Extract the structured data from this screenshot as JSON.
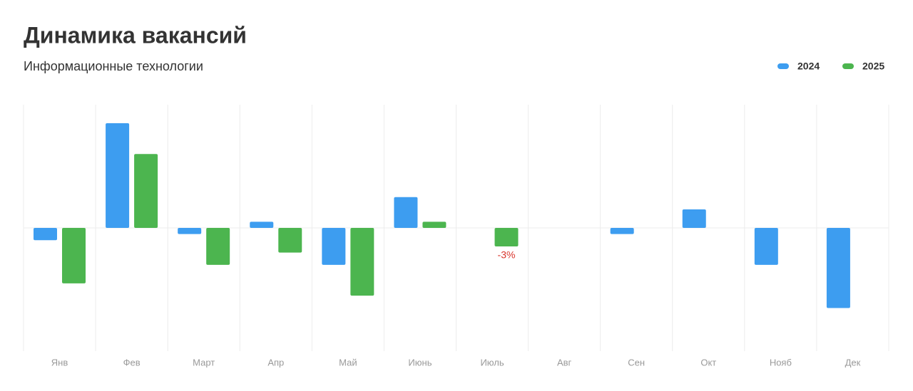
{
  "chart_data": {
    "type": "bar",
    "title": "Динамика вакансий",
    "subtitle": "Информационные технологии",
    "categories": [
      "Янв",
      "Фев",
      "Март",
      "Апр",
      "Май",
      "Июнь",
      "Июль",
      "Авг",
      "Сен",
      "Окт",
      "Нояб",
      "Дек"
    ],
    "series": [
      {
        "name": "2024",
        "color": "#3d9df0",
        "values": [
          -2,
          17,
          -1,
          1,
          -6,
          5,
          null,
          null,
          -1,
          3,
          -6,
          -13
        ]
      },
      {
        "name": "2025",
        "color": "#4cb54f",
        "values": [
          -9,
          12,
          -6,
          -4,
          -11,
          1,
          -3,
          null,
          null,
          null,
          null,
          null
        ],
        "value_labels": [
          null,
          null,
          null,
          null,
          null,
          null,
          "-3%",
          null,
          null,
          null,
          null,
          null
        ]
      }
    ],
    "ylim": [
      -20,
      20
    ],
    "legend": "top-right",
    "grid": true
  }
}
